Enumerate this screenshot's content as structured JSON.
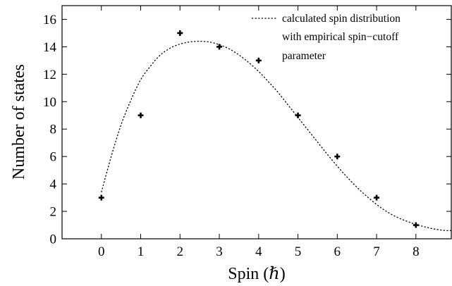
{
  "chart_data": {
    "type": "scatter",
    "xlabel": "Spin (ℏ)",
    "ylabel": "Number of states",
    "xlim": [
      -1,
      8.9
    ],
    "ylim": [
      0,
      17
    ],
    "xticks": [
      0,
      1,
      2,
      3,
      4,
      5,
      6,
      7,
      8
    ],
    "yticks": [
      0,
      2,
      4,
      6,
      8,
      10,
      12,
      14,
      16
    ],
    "legend_position": "top-right",
    "series": [
      {
        "kind": "points",
        "marker": "plus",
        "color": "#000000",
        "x": [
          0,
          1,
          2,
          3,
          4,
          5,
          6,
          7,
          8
        ],
        "y": [
          3,
          9,
          15,
          14,
          13,
          9,
          6,
          3,
          1
        ]
      },
      {
        "kind": "line",
        "style": "dotted",
        "color": "#000000",
        "name_lines": [
          "calculated spin distribution",
          "with empirical spin−cutoff",
          "parameter"
        ],
        "x": [
          0,
          0.25,
          0.5,
          0.75,
          1,
          1.25,
          1.5,
          1.75,
          2,
          2.25,
          2.5,
          2.75,
          3,
          3.25,
          3.5,
          3.75,
          4,
          4.25,
          4.5,
          4.75,
          5,
          5.25,
          5.5,
          5.75,
          6,
          6.25,
          6.5,
          6.75,
          7,
          7.25,
          7.5,
          7.75,
          8,
          8.25,
          8.5,
          8.75,
          8.9
        ],
        "y": [
          3.4,
          6.0,
          8.3,
          10.1,
          11.6,
          12.6,
          13.4,
          13.9,
          14.2,
          14.35,
          14.4,
          14.35,
          14.15,
          13.85,
          13.4,
          12.85,
          12.2,
          11.45,
          10.65,
          9.75,
          8.85,
          7.95,
          7.05,
          6.15,
          5.3,
          4.5,
          3.75,
          3.1,
          2.5,
          2.0,
          1.6,
          1.3,
          1.05,
          0.85,
          0.7,
          0.6,
          0.6
        ]
      }
    ]
  }
}
